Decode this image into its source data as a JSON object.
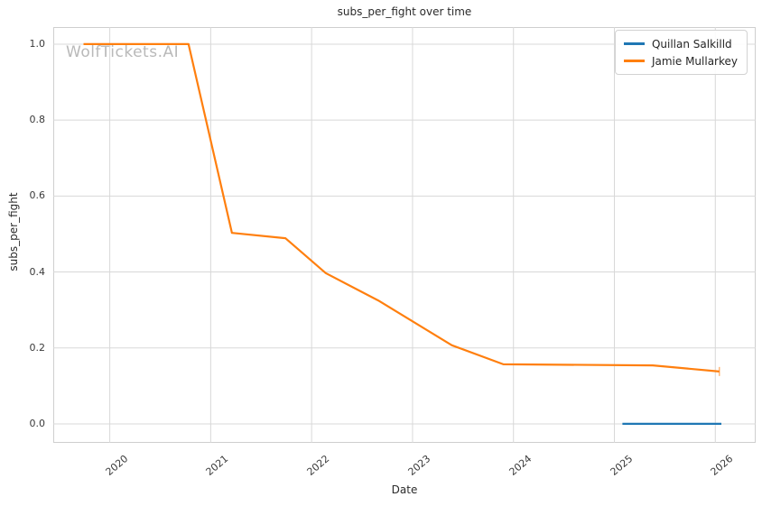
{
  "chart_data": {
    "type": "line",
    "title": "subs_per_fight over time",
    "xlabel": "Date",
    "ylabel": "subs_per_fight",
    "watermark": "WolfTickets.AI",
    "grid": true,
    "legend_position": "upper right",
    "x_axis": {
      "min": 2019.44,
      "max": 2026.4,
      "ticks": [
        2020,
        2021,
        2022,
        2023,
        2024,
        2025,
        2026
      ],
      "tick_rotation_deg": -40
    },
    "y_axis": {
      "min": -0.05,
      "max": 1.045,
      "ticks": [
        0.0,
        0.2,
        0.4,
        0.6,
        0.8,
        1.0
      ]
    },
    "series": [
      {
        "name": "Quillan Salkilld",
        "color": "#1f77b4",
        "end_tick": false,
        "points": [
          [
            2025.08,
            0.0
          ],
          [
            2026.06,
            0.0
          ]
        ]
      },
      {
        "name": "Jamie Mullarkey",
        "color": "#ff7f0e",
        "end_tick": true,
        "points": [
          [
            2019.74,
            1.0
          ],
          [
            2020.78,
            1.0
          ],
          [
            2021.21,
            0.503
          ],
          [
            2021.74,
            0.489
          ],
          [
            2022.14,
            0.397
          ],
          [
            2022.66,
            0.325
          ],
          [
            2023.39,
            0.207
          ],
          [
            2023.9,
            0.157
          ],
          [
            2025.38,
            0.154
          ],
          [
            2026.04,
            0.138
          ]
        ]
      }
    ],
    "colors": {
      "grid": "#d8d8d8",
      "spine": "#cfcfcf",
      "title_text": "#2b2b2b",
      "tick_text": "#3a3a3a",
      "legend_text": "#262626",
      "watermark": "#b9b9b9",
      "background": "#ffffff"
    }
  }
}
